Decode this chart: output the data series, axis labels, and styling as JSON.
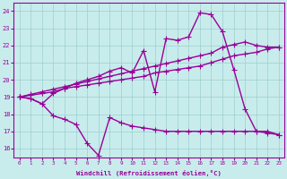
{
  "background_color": "#c8ecec",
  "grid_color": "#9ecece",
  "line_color": "#990099",
  "markersize": 2.5,
  "linewidth": 1.0,
  "xlim": [
    -0.5,
    23.5
  ],
  "ylim": [
    15.5,
    24.5
  ],
  "yticks": [
    16,
    17,
    18,
    19,
    20,
    21,
    22,
    23,
    24
  ],
  "xticks": [
    0,
    1,
    2,
    3,
    4,
    5,
    6,
    7,
    8,
    9,
    10,
    11,
    12,
    13,
    14,
    15,
    16,
    17,
    18,
    19,
    20,
    21,
    22,
    23
  ],
  "xlabel": "Windchill (Refroidissement éolien,°C)",
  "series": {
    "line_low": {
      "x": [
        0,
        1,
        2,
        3,
        4,
        5,
        6,
        7,
        8,
        9,
        10,
        11,
        12,
        13,
        14,
        15,
        16,
        17,
        18,
        19,
        20,
        21,
        22,
        23
      ],
      "y": [
        19.0,
        18.9,
        18.6,
        17.9,
        17.7,
        17.4,
        16.3,
        15.6,
        17.8,
        17.5,
        17.3,
        17.2,
        17.1,
        17.0,
        17.0,
        17.0,
        17.0,
        17.0,
        17.0,
        17.0,
        17.0,
        17.0,
        16.9,
        16.8
      ]
    },
    "line_high": {
      "x": [
        0,
        1,
        2,
        3,
        4,
        5,
        6,
        7,
        8,
        9,
        10,
        11,
        12,
        13,
        14,
        15,
        16,
        17,
        18,
        19,
        20,
        21,
        22,
        23
      ],
      "y": [
        19.0,
        18.9,
        18.6,
        19.2,
        19.5,
        19.8,
        20.0,
        20.2,
        20.5,
        20.7,
        20.4,
        21.7,
        19.3,
        22.4,
        22.3,
        22.5,
        23.9,
        23.8,
        22.8,
        20.6,
        18.3,
        17.0,
        17.0,
        16.8
      ]
    },
    "line_trend1": {
      "x": [
        0,
        1,
        2,
        3,
        4,
        5,
        6,
        7,
        8,
        9,
        10,
        11,
        12,
        13,
        14,
        15,
        16,
        17,
        18,
        19,
        20,
        21,
        22,
        23
      ],
      "y": [
        19.0,
        19.1,
        19.2,
        19.3,
        19.5,
        19.6,
        19.7,
        19.8,
        19.9,
        20.0,
        20.1,
        20.2,
        20.4,
        20.5,
        20.6,
        20.7,
        20.8,
        21.0,
        21.2,
        21.4,
        21.5,
        21.6,
        21.8,
        21.9
      ]
    },
    "line_trend2": {
      "x": [
        0,
        1,
        2,
        3,
        4,
        5,
        6,
        7,
        8,
        9,
        10,
        11,
        12,
        13,
        14,
        15,
        16,
        17,
        18,
        19,
        20,
        21,
        22,
        23
      ],
      "y": [
        19.0,
        19.15,
        19.3,
        19.45,
        19.6,
        19.75,
        19.9,
        20.05,
        20.2,
        20.35,
        20.5,
        20.65,
        20.8,
        20.95,
        21.1,
        21.25,
        21.4,
        21.55,
        21.9,
        22.05,
        22.2,
        22.0,
        21.9,
        21.9
      ]
    }
  }
}
